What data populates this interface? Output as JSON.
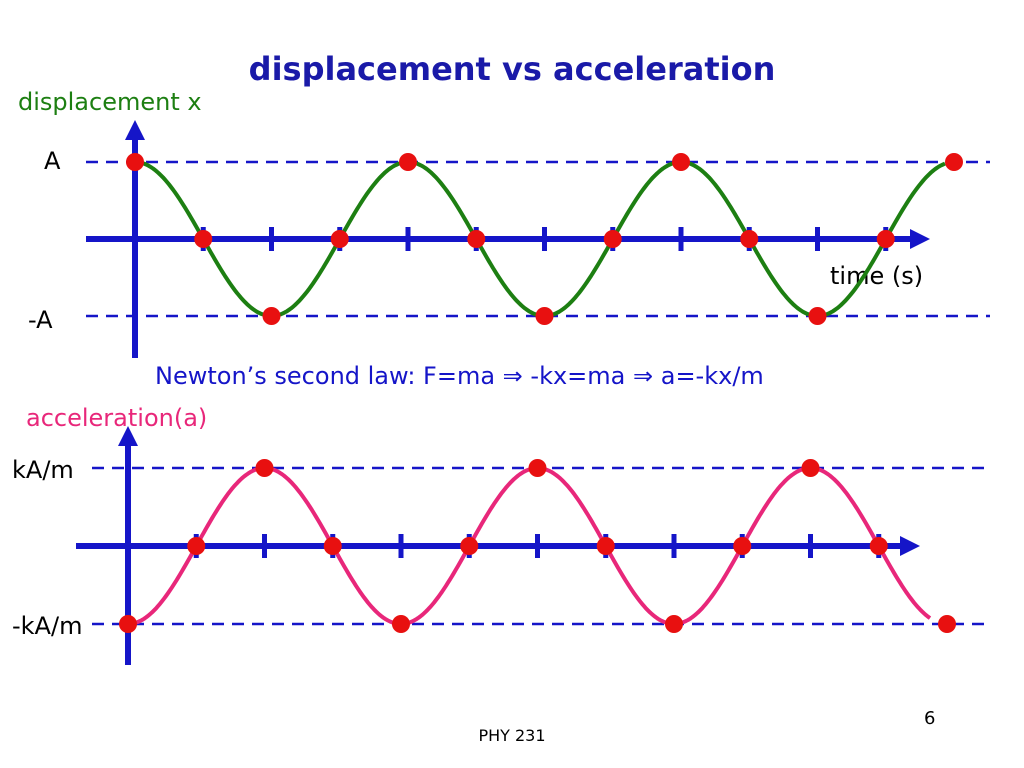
{
  "title": "displacement vs acceleration",
  "colors": {
    "title": "#1a1aa8",
    "axis": "#1515c8",
    "displacement": "#1d7f12",
    "acceleration": "#e8277a",
    "marker": "#e81010",
    "guide": "#1515c8"
  },
  "displacement_plot": {
    "ylabel": "displacement x",
    "xlabel": "time (s)",
    "upper_label": "A",
    "lower_label": "-A"
  },
  "law_text": {
    "prefix": "Newton’s second law:  F=ma ",
    "mid": " -kx=ma ",
    "suffix": " a=-kx/m",
    "arrow": "⇒"
  },
  "acceleration_plot": {
    "ylabel": "acceleration(a)",
    "upper_label": "kA/m",
    "lower_label": "-kA/m"
  },
  "footer": "PHY 231",
  "page_number": "6",
  "chart_data": [
    {
      "type": "line",
      "title": "",
      "xlabel": "time (s)",
      "ylabel": "displacement x",
      "series": [
        {
          "name": "displacement x",
          "function": "A·cos(ωt)",
          "periods_shown": 3
        }
      ],
      "marked_points": "maxima, minima and zero crossings",
      "ylim_labels": [
        "-A",
        "A"
      ],
      "grid": false
    },
    {
      "type": "line",
      "title": "",
      "xlabel": "",
      "ylabel": "acceleration(a)",
      "series": [
        {
          "name": "acceleration(a)",
          "function": "-(kA/m)·cos(ωt)",
          "periods_shown": 3
        }
      ],
      "marked_points": "maxima, minima and zero crossings",
      "ylim_labels": [
        "-kA/m",
        "kA/m"
      ],
      "grid": false
    }
  ]
}
